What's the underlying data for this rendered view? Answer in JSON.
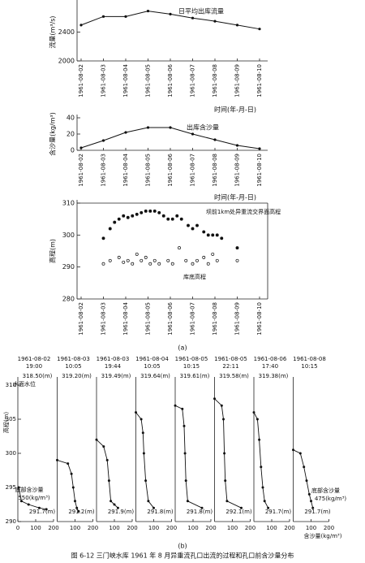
{
  "chart_data": [
    {
      "type": "line",
      "title": "日平均出库流量",
      "y_label": "流量(m³/s)",
      "x_label": "时间(年-月-日)",
      "categories": [
        "1961-08-02",
        "1961-08-03",
        "1961-08-04",
        "1961-08-05",
        "1961-08-06",
        "1961-08-07",
        "1961-08-08",
        "1961-08-09",
        "1961-08-10"
      ],
      "values": [
        2497,
        2616,
        2616,
        2692,
        2649,
        2595,
        2551,
        2497,
        2443
      ],
      "color": "#111",
      "ylim": [
        2000,
        2800
      ],
      "yticks": [
        2000,
        2400
      ]
    },
    {
      "type": "line",
      "title": "出库含沙量",
      "y_label": "含沙量(kg/m³)",
      "x_label": "时间(年-月-日)",
      "categories": [
        "1961-08-02",
        "1961-08-03",
        "1961-08-04",
        "1961-08-05",
        "1961-08-06",
        "1961-08-07",
        "1961-08-08",
        "1961-08-09",
        "1961-08-10"
      ],
      "values": [
        3,
        12,
        22,
        28,
        28,
        20,
        13,
        6,
        2
      ],
      "color": "#111",
      "ylim": [
        0,
        40
      ],
      "yticks": [
        0,
        20,
        40
      ]
    },
    {
      "type": "scatter",
      "y_label": "高程(m)",
      "panel_label": "(a)",
      "xlim": [
        2,
        10
      ],
      "xticks": [
        {
          "value": 2,
          "label": "1961-08-02"
        },
        {
          "value": 3,
          "label": "1961-08-03"
        },
        {
          "value": 4,
          "label": "1961-08-04"
        },
        {
          "value": 5,
          "label": "1961-08-05"
        },
        {
          "value": 6,
          "label": "1961-08-06"
        },
        {
          "value": 7,
          "label": "1961-08-07"
        },
        {
          "value": 8,
          "label": "1961-08-08"
        },
        {
          "value": 9,
          "label": "1961-08-09"
        },
        {
          "value": 10,
          "label": "1961-08-10"
        }
      ],
      "ylim": [
        280,
        310
      ],
      "yticks": [
        280,
        290,
        300,
        310
      ],
      "series": [
        {
          "name": "坝前1km处异重流交界面高程",
          "color": "#111",
          "marker": "filled",
          "x": [
            3.0,
            3.3,
            3.5,
            3.7,
            3.9,
            4.1,
            4.3,
            4.5,
            4.7,
            4.9,
            5.1,
            5.3,
            5.5,
            5.7,
            5.9,
            6.1,
            6.3,
            6.5,
            6.8,
            7.0,
            7.2,
            7.5,
            7.7,
            7.9,
            8.1,
            8.3,
            9.0
          ],
          "values": [
            299,
            302,
            304,
            305,
            306,
            305.5,
            306,
            306.5,
            307,
            307.5,
            307.5,
            307.5,
            307,
            306,
            305,
            305,
            306,
            305,
            303,
            302,
            303,
            301,
            300,
            300,
            300,
            299,
            296
          ]
        },
        {
          "name": "库底高程",
          "color": "#111",
          "marker": "open",
          "x": [
            3.0,
            3.3,
            3.7,
            3.9,
            4.1,
            4.3,
            4.5,
            4.7,
            4.9,
            5.1,
            5.3,
            5.5,
            5.9,
            6.1,
            6.4,
            6.7,
            7.0,
            7.2,
            7.5,
            7.7,
            7.9,
            8.1,
            9.0
          ],
          "values": [
            291,
            292,
            293,
            291.5,
            292,
            291,
            294,
            292,
            293,
            291,
            292,
            291,
            292,
            291,
            296,
            292,
            291,
            292,
            293,
            291,
            294,
            292,
            292
          ]
        }
      ]
    },
    {
      "type": "profile",
      "y_label": "高程(m)",
      "x_label": "含沙量(kg/m³)",
      "panel_label": "(b)",
      "water_label": "水面水位",
      "ylim": [
        290,
        310
      ],
      "yticks": [
        290,
        295,
        300,
        305,
        310
      ],
      "xlim": [
        0,
        200
      ],
      "panels": [
        {
          "date": "1961-08-02",
          "time": "19:00",
          "water_level": "318.50(m)",
          "bottom": "291.7(m)",
          "xticks": [
            0,
            100,
            200
          ],
          "note": "底部含沙量",
          "note_value": "550(kg/m³)",
          "x": [
            5,
            20,
            60,
            120,
            160
          ],
          "values": [
            295,
            293,
            292.5,
            292,
            291.8
          ]
        },
        {
          "date": "1961-08-03",
          "time": "10:05",
          "water_level": "319.20(m)",
          "bottom": "291.2(m)",
          "xticks": [
            100,
            200
          ],
          "x": [
            0,
            60,
            80,
            90,
            100,
            110,
            120
          ],
          "values": [
            299,
            298.5,
            297,
            295,
            293,
            292,
            291.5
          ]
        },
        {
          "date": "1961-08-03",
          "time": "19:44",
          "water_level": "319.49(m)",
          "bottom": "291.9(m)",
          "xticks": [
            100,
            200
          ],
          "x": [
            0,
            40,
            60,
            70,
            80,
            100,
            120
          ],
          "values": [
            302,
            301,
            299,
            296,
            293,
            292.5,
            292
          ]
        },
        {
          "date": "1961-08-04",
          "time": "10:05",
          "water_level": "319.64(m)",
          "bottom": "291.8(m)",
          "xticks": [
            100,
            200
          ],
          "x": [
            0,
            30,
            40,
            45,
            55,
            70,
            100
          ],
          "values": [
            306,
            305,
            303,
            300,
            296,
            293,
            292
          ]
        },
        {
          "date": "1961-08-05",
          "time": "10:15",
          "water_level": "319.61(m)",
          "bottom": "291.8(m)",
          "xticks": [
            100,
            200
          ],
          "x": [
            0,
            40,
            50,
            55,
            60,
            70,
            150
          ],
          "values": [
            307,
            306.5,
            304,
            300,
            296,
            293,
            292
          ]
        },
        {
          "date": "1961-08-05",
          "time": "22:11",
          "water_level": "319.58(m)",
          "bottom": "292.1(m)",
          "xticks": [
            100,
            200
          ],
          "x": [
            0,
            40,
            50,
            55,
            60,
            70,
            150
          ],
          "values": [
            308,
            307,
            305,
            300,
            296,
            293,
            292
          ]
        },
        {
          "date": "1961-08-06",
          "time": "17:40",
          "water_level": "319.38(m)",
          "bottom": "291.7(m)",
          "xticks": [
            100,
            200
          ],
          "x": [
            0,
            20,
            30,
            40,
            50,
            60,
            80
          ],
          "values": [
            306,
            305,
            302,
            298,
            295,
            293,
            292
          ]
        },
        {
          "date": "1961-08-08",
          "time": "10:15",
          "bottom": "291.7(m)",
          "xticks": [
            100,
            200
          ],
          "note": "底部含沙量",
          "note_value": "475(kg/m³)",
          "x": [
            0,
            40,
            60,
            75,
            90,
            100,
            110
          ],
          "values": [
            300.5,
            300,
            298,
            296,
            294,
            293,
            292
          ]
        }
      ]
    }
  ],
  "caption": "图 6-12  三门峡水库 1961 年 8 月异重流孔口出流的过程和孔口前含沙量分布"
}
